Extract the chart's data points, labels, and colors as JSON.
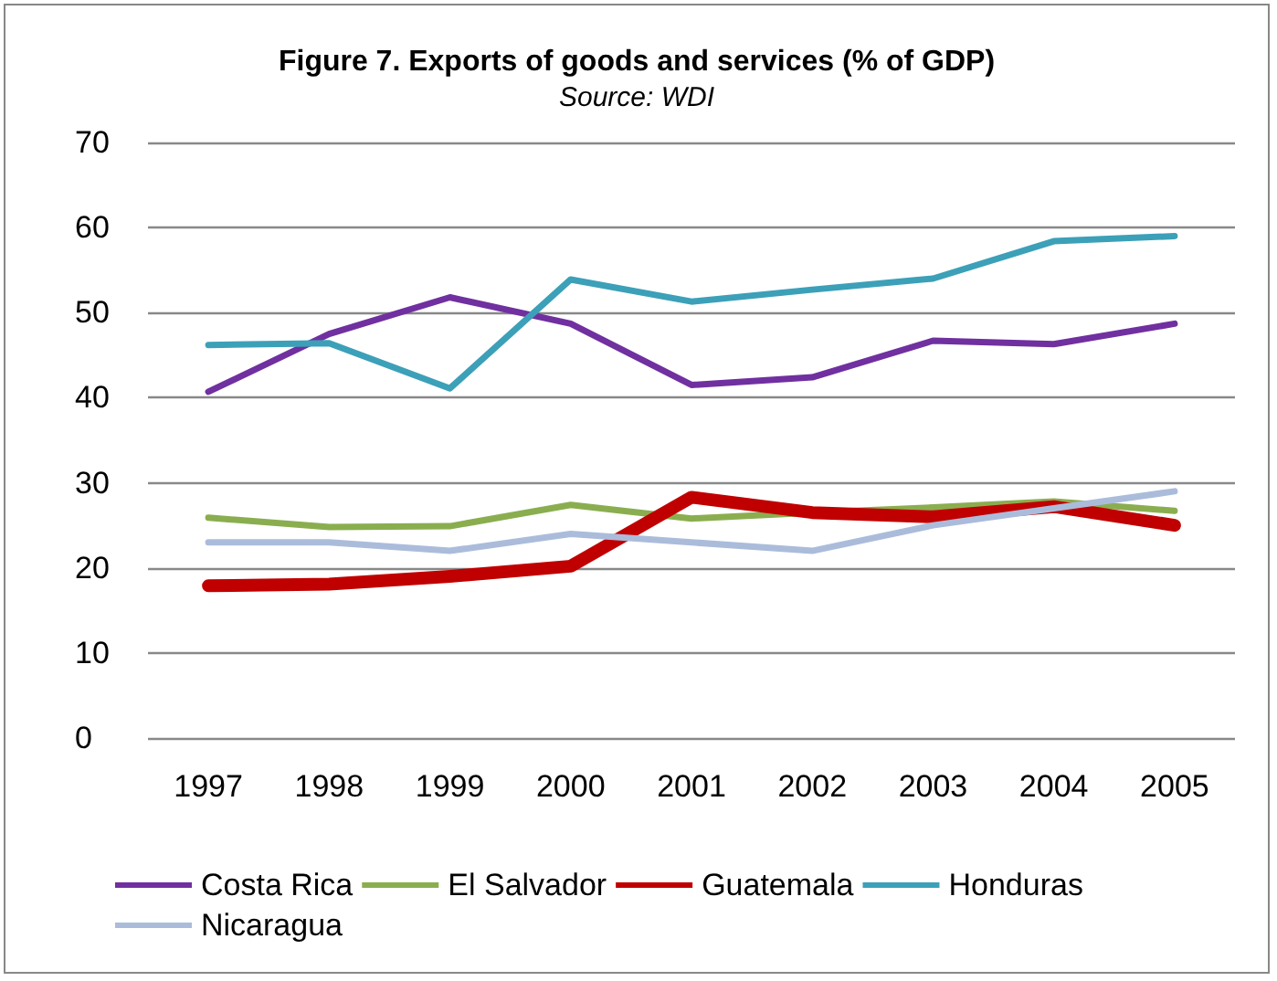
{
  "chart_data": {
    "type": "line",
    "title": "Figure 7. Exports of goods and services (% of GDP)",
    "subtitle": "Source: WDI",
    "categories": [
      "1997",
      "1998",
      "1999",
      "2000",
      "2001",
      "2002",
      "2003",
      "2004",
      "2005"
    ],
    "series": [
      {
        "name": "Costa Rica",
        "color": "#7030a0",
        "values": [
          40.7,
          47.5,
          51.8,
          48.7,
          41.5,
          42.4,
          46.7,
          46.3,
          48.7
        ]
      },
      {
        "name": "El Salvador",
        "color": "#8aae4f",
        "values": [
          25.9,
          24.8,
          24.9,
          27.4,
          25.8,
          26.5,
          27.1,
          27.8,
          26.7
        ]
      },
      {
        "name": "Guatemala",
        "color": "#c00000",
        "values": [
          17.9,
          18.1,
          19.0,
          20.2,
          28.3,
          26.5,
          26.0,
          27.2,
          25.0
        ]
      },
      {
        "name": "Honduras",
        "color": "#3ca0b8",
        "values": [
          46.2,
          46.4,
          41.1,
          53.9,
          51.3,
          52.7,
          54.0,
          58.4,
          59.0
        ]
      },
      {
        "name": "Nicaragua",
        "color": "#abbcdb",
        "values": [
          23.0,
          23.0,
          22.0,
          24.0,
          23.0,
          22.0,
          25.0,
          27.0,
          29.0
        ]
      }
    ],
    "ylim": [
      0,
      70
    ],
    "yticks": [
      0,
      10,
      20,
      30,
      40,
      50,
      60,
      70
    ],
    "grid": "y",
    "legend": "bottom",
    "marker": "none",
    "line_style": "solid"
  }
}
